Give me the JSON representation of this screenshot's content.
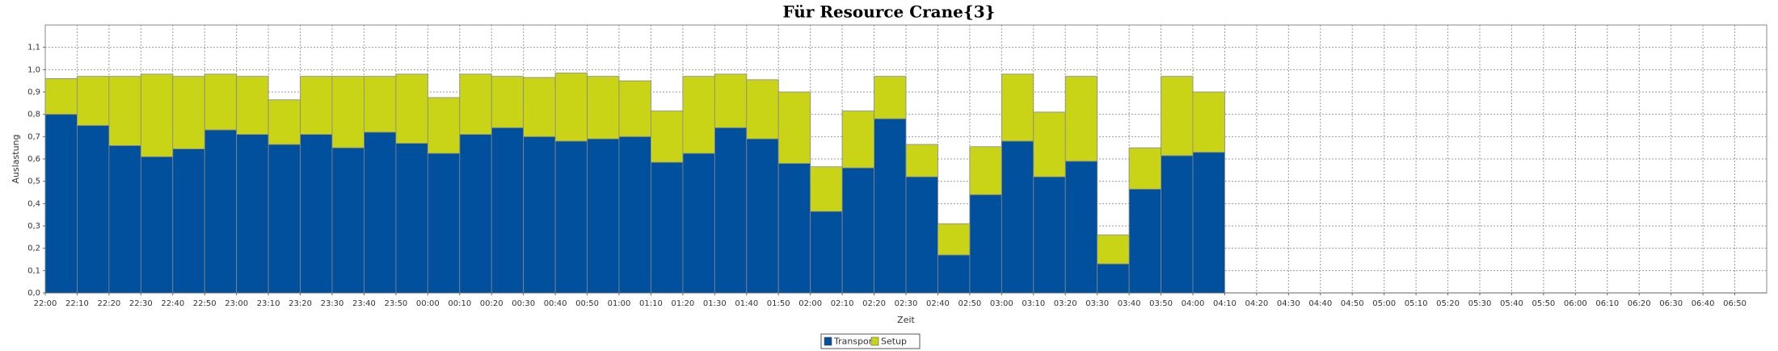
{
  "chart_data": {
    "type": "stacked_bar",
    "title": "Für Resource Crane{3}",
    "x_label": "Zeit",
    "y_label": "Auslastung",
    "categories": [
      "22:00",
      "22:10",
      "22:20",
      "22:30",
      "22:40",
      "22:50",
      "23:00",
      "23:10",
      "23:20",
      "23:30",
      "23:40",
      "23:50",
      "00:00",
      "00:10",
      "00:20",
      "00:30",
      "00:40",
      "00:50",
      "01:00",
      "01:10",
      "01:20",
      "01:30",
      "01:40",
      "01:50",
      "02:00",
      "02:10",
      "02:20",
      "02:30",
      "02:40",
      "02:50",
      "03:00",
      "03:10",
      "03:20",
      "03:30",
      "03:40",
      "03:50",
      "04:00",
      "04:10",
      "04:20",
      "04:30",
      "04:40",
      "04:50",
      "05:00",
      "05:10",
      "05:20",
      "05:30",
      "05:40",
      "05:50",
      "06:00",
      "06:10",
      "06:20",
      "06:30",
      "06:40",
      "06:50"
    ],
    "series": [
      {
        "name": "Transport",
        "color": "#00509e",
        "values": [
          0.8,
          0.75,
          0.66,
          0.61,
          0.645,
          0.73,
          0.71,
          0.665,
          0.71,
          0.65,
          0.72,
          0.67,
          0.625,
          0.71,
          0.74,
          0.7,
          0.68,
          0.69,
          0.7,
          0.585,
          0.625,
          0.74,
          0.69,
          0.58,
          0.365,
          0.56,
          0.78,
          0.52,
          0.17,
          0.44,
          0.68,
          0.52,
          0.59,
          0.13,
          0.465,
          0.615,
          0.63,
          null,
          null,
          null,
          null,
          null,
          null,
          null,
          null,
          null,
          null,
          null,
          null,
          null,
          null,
          null,
          null,
          null
        ]
      },
      {
        "name": "Setup",
        "color": "#c9d417",
        "values": [
          0.16,
          0.22,
          0.31,
          0.37,
          0.325,
          0.25,
          0.26,
          0.2,
          0.26,
          0.32,
          0.25,
          0.31,
          0.25,
          0.27,
          0.23,
          0.265,
          0.305,
          0.28,
          0.25,
          0.23,
          0.345,
          0.24,
          0.265,
          0.32,
          0.2,
          0.255,
          0.19,
          0.145,
          0.14,
          0.215,
          0.3,
          0.29,
          0.38,
          0.13,
          0.185,
          0.355,
          0.27,
          null,
          null,
          null,
          null,
          null,
          null,
          null,
          null,
          null,
          null,
          null,
          null,
          null,
          null,
          null,
          null,
          null
        ]
      }
    ],
    "ylim": [
      0,
      1.2
    ],
    "yticks": [
      {
        "value": 0,
        "label": "0,0"
      },
      {
        "value": 0.1,
        "label": "0,1"
      },
      {
        "value": 0.2,
        "label": "0,2"
      },
      {
        "value": 0.3,
        "label": "0,3"
      },
      {
        "value": 0.4,
        "label": "0,4"
      },
      {
        "value": 0.5,
        "label": "0,5"
      },
      {
        "value": 0.6,
        "label": "0,6"
      },
      {
        "value": 0.7,
        "label": "0,7"
      },
      {
        "value": 0.8,
        "label": "0,8"
      },
      {
        "value": 0.9,
        "label": "0,9"
      },
      {
        "value": 1.0,
        "label": "1,0"
      },
      {
        "value": 1.1,
        "label": "1,1"
      }
    ],
    "grid": true,
    "legend": "bottom"
  }
}
